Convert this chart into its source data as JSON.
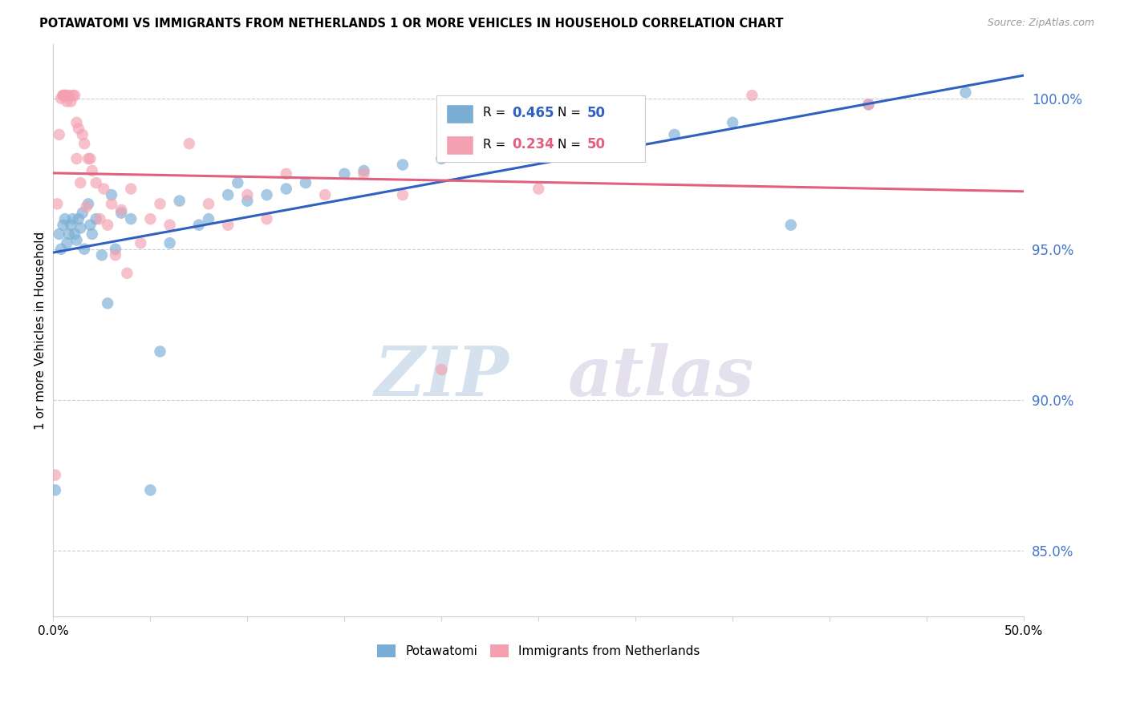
{
  "title": "POTAWATOMI VS IMMIGRANTS FROM NETHERLANDS 1 OR MORE VEHICLES IN HOUSEHOLD CORRELATION CHART",
  "source": "Source: ZipAtlas.com",
  "ylabel": "1 or more Vehicles in Household",
  "xlim": [
    0.0,
    0.5
  ],
  "ylim": [
    0.828,
    1.018
  ],
  "yticks_right": [
    0.85,
    0.9,
    0.95,
    1.0
  ],
  "ytick_right_labels": [
    "85.0%",
    "90.0%",
    "95.0%",
    "100.0%"
  ],
  "xticks": [
    0.0,
    0.05,
    0.1,
    0.15,
    0.2,
    0.25,
    0.3,
    0.35,
    0.4,
    0.45,
    0.5
  ],
  "xtick_labels": [
    "0.0%",
    "",
    "",
    "",
    "",
    "",
    "",
    "",
    "",
    "",
    "50.0%"
  ],
  "blue_R": 0.465,
  "blue_N": 50,
  "pink_R": 0.234,
  "pink_N": 50,
  "blue_color": "#7aadd4",
  "pink_color": "#f4a0b0",
  "blue_line_color": "#3060c0",
  "pink_line_color": "#e06080",
  "legend_label_blue": "Potawatomi",
  "legend_label_pink": "Immigrants from Netherlands",
  "watermark_zip": "ZIP",
  "watermark_atlas": "atlas",
  "blue_scatter_x": [
    0.001,
    0.003,
    0.004,
    0.005,
    0.006,
    0.007,
    0.008,
    0.009,
    0.01,
    0.011,
    0.012,
    0.013,
    0.014,
    0.015,
    0.016,
    0.018,
    0.019,
    0.02,
    0.022,
    0.025,
    0.028,
    0.03,
    0.032,
    0.035,
    0.04,
    0.05,
    0.055,
    0.06,
    0.065,
    0.075,
    0.08,
    0.09,
    0.095,
    0.1,
    0.11,
    0.12,
    0.13,
    0.15,
    0.16,
    0.18,
    0.2,
    0.22,
    0.25,
    0.27,
    0.3,
    0.32,
    0.35,
    0.38,
    0.42,
    0.47
  ],
  "blue_scatter_y": [
    0.87,
    0.955,
    0.95,
    0.958,
    0.96,
    0.952,
    0.955,
    0.958,
    0.96,
    0.955,
    0.953,
    0.96,
    0.957,
    0.962,
    0.95,
    0.965,
    0.958,
    0.955,
    0.96,
    0.948,
    0.932,
    0.968,
    0.95,
    0.962,
    0.96,
    0.87,
    0.916,
    0.952,
    0.966,
    0.958,
    0.96,
    0.968,
    0.972,
    0.966,
    0.968,
    0.97,
    0.972,
    0.975,
    0.976,
    0.978,
    0.98,
    0.982,
    0.985,
    0.988,
    0.99,
    0.988,
    0.992,
    0.958,
    0.998,
    1.002
  ],
  "pink_scatter_x": [
    0.001,
    0.002,
    0.003,
    0.004,
    0.005,
    0.005,
    0.006,
    0.006,
    0.007,
    0.007,
    0.008,
    0.009,
    0.01,
    0.011,
    0.012,
    0.012,
    0.013,
    0.014,
    0.015,
    0.016,
    0.017,
    0.018,
    0.019,
    0.02,
    0.022,
    0.024,
    0.026,
    0.028,
    0.03,
    0.032,
    0.035,
    0.038,
    0.04,
    0.045,
    0.05,
    0.055,
    0.06,
    0.07,
    0.08,
    0.09,
    0.1,
    0.11,
    0.12,
    0.14,
    0.16,
    0.18,
    0.2,
    0.25,
    0.36,
    0.42
  ],
  "pink_scatter_y": [
    0.875,
    0.965,
    0.988,
    1.0,
    1.001,
    1.001,
    1.001,
    1.001,
    1.001,
    0.999,
    1.001,
    0.999,
    1.001,
    1.001,
    0.992,
    0.98,
    0.99,
    0.972,
    0.988,
    0.985,
    0.964,
    0.98,
    0.98,
    0.976,
    0.972,
    0.96,
    0.97,
    0.958,
    0.965,
    0.948,
    0.963,
    0.942,
    0.97,
    0.952,
    0.96,
    0.965,
    0.958,
    0.985,
    0.965,
    0.958,
    0.968,
    0.96,
    0.975,
    0.968,
    0.975,
    0.968,
    0.91,
    0.97,
    1.001,
    0.998
  ]
}
